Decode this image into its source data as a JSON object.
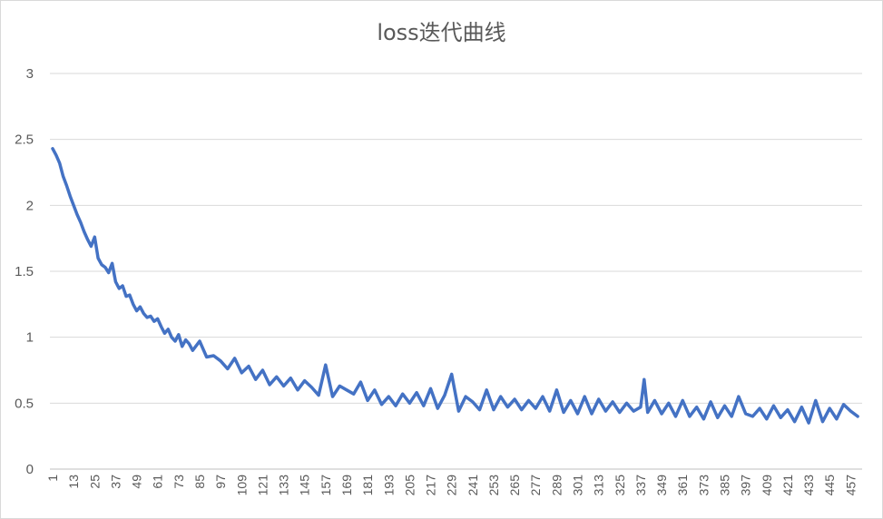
{
  "chart_data": {
    "type": "line",
    "title": "loss迭代曲线",
    "xlabel": "",
    "ylabel": "",
    "ylim": [
      0,
      3
    ],
    "yticks": [
      0,
      0.5,
      1,
      1.5,
      2,
      2.5,
      3
    ],
    "grid": true,
    "legend": "none",
    "line_color": "#4472C4",
    "x_range": [
      1,
      462
    ],
    "xtick_labels": [
      1,
      13,
      25,
      37,
      49,
      61,
      73,
      85,
      97,
      109,
      121,
      133,
      145,
      157,
      169,
      181,
      193,
      205,
      217,
      229,
      241,
      253,
      265,
      277,
      289,
      301,
      313,
      325,
      337,
      349,
      361,
      373,
      385,
      397,
      409,
      421,
      433,
      445,
      457
    ],
    "series": [
      {
        "x": [
          1,
          3,
          5,
          7,
          9,
          11,
          13,
          15,
          17,
          19,
          21,
          23,
          25,
          27,
          29,
          31,
          33,
          35,
          37,
          39,
          41,
          43,
          45,
          47,
          49,
          51,
          53,
          55,
          57,
          59,
          61,
          63,
          65,
          67,
          69,
          71,
          73,
          75,
          77,
          79,
          81,
          85,
          89,
          93,
          97,
          101,
          105,
          109,
          113,
          117,
          121,
          125,
          129,
          133,
          137,
          141,
          145,
          149,
          153,
          157,
          161,
          165,
          169,
          173,
          177,
          181,
          185,
          189,
          193,
          197,
          201,
          205,
          209,
          213,
          217,
          221,
          225,
          229,
          233,
          237,
          241,
          245,
          249,
          253,
          257,
          261,
          265,
          269,
          273,
          277,
          281,
          285,
          289,
          293,
          297,
          301,
          305,
          309,
          313,
          317,
          321,
          325,
          329,
          333,
          337,
          339,
          341,
          345,
          349,
          353,
          357,
          361,
          365,
          369,
          373,
          377,
          381,
          385,
          389,
          393,
          397,
          401,
          405,
          409,
          413,
          417,
          421,
          425,
          429,
          433,
          437,
          441,
          445,
          449,
          453,
          457,
          461
        ],
        "values": [
          2.43,
          2.38,
          2.32,
          2.22,
          2.15,
          2.07,
          2.0,
          1.93,
          1.87,
          1.8,
          1.74,
          1.69,
          1.76,
          1.6,
          1.55,
          1.53,
          1.49,
          1.56,
          1.42,
          1.37,
          1.39,
          1.31,
          1.32,
          1.25,
          1.2,
          1.23,
          1.18,
          1.15,
          1.16,
          1.12,
          1.14,
          1.08,
          1.03,
          1.06,
          1.0,
          0.97,
          1.02,
          0.93,
          0.98,
          0.95,
          0.9,
          0.97,
          0.85,
          0.86,
          0.82,
          0.76,
          0.84,
          0.73,
          0.78,
          0.68,
          0.75,
          0.64,
          0.7,
          0.63,
          0.69,
          0.6,
          0.67,
          0.62,
          0.56,
          0.79,
          0.55,
          0.63,
          0.6,
          0.57,
          0.66,
          0.52,
          0.6,
          0.49,
          0.55,
          0.48,
          0.57,
          0.5,
          0.58,
          0.48,
          0.61,
          0.46,
          0.56,
          0.72,
          0.44,
          0.55,
          0.51,
          0.45,
          0.6,
          0.45,
          0.55,
          0.47,
          0.53,
          0.45,
          0.52,
          0.46,
          0.55,
          0.44,
          0.6,
          0.43,
          0.52,
          0.42,
          0.55,
          0.42,
          0.53,
          0.44,
          0.51,
          0.43,
          0.5,
          0.44,
          0.47,
          0.68,
          0.43,
          0.52,
          0.42,
          0.5,
          0.4,
          0.52,
          0.4,
          0.47,
          0.38,
          0.51,
          0.39,
          0.48,
          0.4,
          0.55,
          0.42,
          0.4,
          0.46,
          0.38,
          0.48,
          0.39,
          0.45,
          0.36,
          0.47,
          0.35,
          0.52,
          0.36,
          0.46,
          0.38,
          0.49,
          0.44,
          0.4
        ]
      }
    ]
  }
}
